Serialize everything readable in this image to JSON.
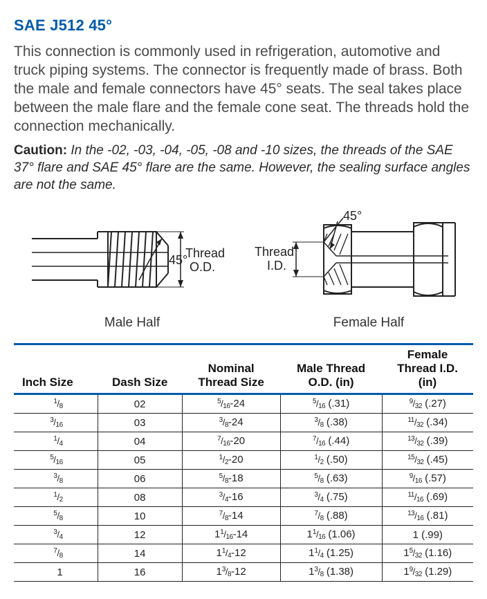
{
  "title": "SAE J512 45°",
  "body_text": "This connection is commonly used in refrigeration, automotive and truck piping systems. The connector is frequently made of brass. Both the male and female connectors have 45° seats. The seal takes place between the male flare and the female cone seat. The threads hold the connection mechanically.",
  "caution_label": "Caution:",
  "caution_text": " In the -02, -03, -04, -05, -08 and -10 sizes, the threads of the SAE 37° flare and SAE 45° flare are the same. However, the sealing surface angles are not the same.",
  "diagram": {
    "male": {
      "label": "Male Half",
      "angle_label": "45°",
      "dim_label1": "Thread",
      "dim_label2": "O.D."
    },
    "female": {
      "label": "Female Half",
      "angle_label": "45°",
      "dim_label1": "Thread",
      "dim_label2": "I.D."
    }
  },
  "table": {
    "headers": {
      "c0": "Inch Size",
      "c1": "Dash Size",
      "c2": "Nominal Thread Size",
      "c3": "Male Thread O.D. (in)",
      "c4": "Female Thread I.D. (in)"
    },
    "rows": [
      {
        "inch": "1/8",
        "dash": "02",
        "nom": "5/16-24",
        "male": "5/16 (.31)",
        "female": "9/32 (.27)"
      },
      {
        "inch": "3/16",
        "dash": "03",
        "nom": "3/8-24",
        "male": "3/8 (.38)",
        "female": "11/32 (.34)"
      },
      {
        "inch": "1/4",
        "dash": "04",
        "nom": "7/16-20",
        "male": "7/16 (.44)",
        "female": "13/32 (.39)"
      },
      {
        "inch": "5/16",
        "dash": "05",
        "nom": "1/2-20",
        "male": "1/2 (.50)",
        "female": "15/32 (.45)"
      },
      {
        "inch": "3/8",
        "dash": "06",
        "nom": "5/8-18",
        "male": "5/8 (.63)",
        "female": "9/16 (.57)"
      },
      {
        "inch": "1/2",
        "dash": "08",
        "nom": "3/4-16",
        "male": "3/4 (.75)",
        "female": "11/16 (.69)"
      },
      {
        "inch": "5/8",
        "dash": "10",
        "nom": "7/8-14",
        "male": "7/8 (.88)",
        "female": "13/16 (.81)"
      },
      {
        "inch": "3/4",
        "dash": "12",
        "nom": "1 1/16-14",
        "male": "1 1/16 (1.06)",
        "female": "1 (.99)"
      },
      {
        "inch": "7/8",
        "dash": "14",
        "nom": "1 1/4-12",
        "male": "1 1/4 (1.25)",
        "female": "1 5/32 (1.16)"
      },
      {
        "inch": "1",
        "dash": "16",
        "nom": "1 3/8-12",
        "male": "1 3/8 (1.38)",
        "female": "1 9/32 (1.29)"
      }
    ]
  },
  "colors": {
    "accent": "#005aab",
    "text": "#333333",
    "border": "#222222"
  }
}
